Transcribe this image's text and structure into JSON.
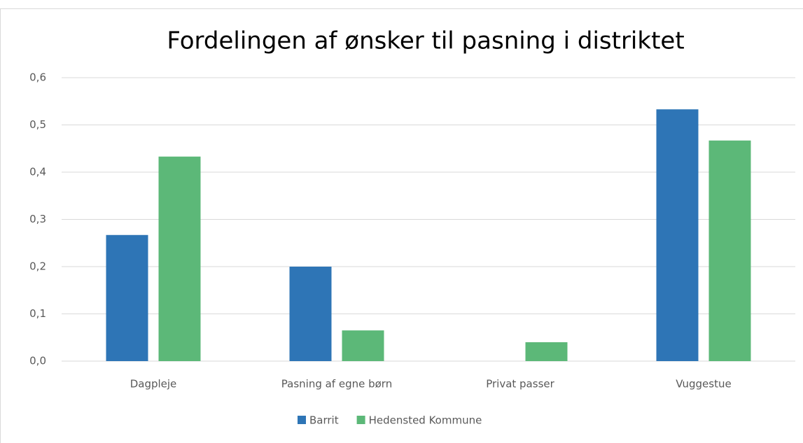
{
  "chart_data": {
    "type": "bar",
    "title": "Fordelingen af ønsker til pasning i distriktet",
    "categories": [
      "Dagpleje",
      "Pasning af egne børn",
      "Privat passer",
      "Vuggestue"
    ],
    "series": [
      {
        "name": "Barrit",
        "color": "#2e75b6",
        "values": [
          0.267,
          0.2,
          0,
          0.533
        ]
      },
      {
        "name": "Hedensted Kommune",
        "color": "#5cb878",
        "values": [
          0.433,
          0.065,
          0.04,
          0.467
        ]
      }
    ],
    "ylim": [
      0,
      0.6
    ],
    "yticks": [
      {
        "value": 0,
        "label": "0,0"
      },
      {
        "value": 0.1,
        "label": "0,1"
      },
      {
        "value": 0.2,
        "label": "0,2"
      },
      {
        "value": 0.3,
        "label": "0,3"
      },
      {
        "value": 0.4,
        "label": "0,4"
      },
      {
        "value": 0.5,
        "label": "0,5"
      },
      {
        "value": 0.6,
        "label": "0,6"
      }
    ],
    "grid": true,
    "legend": "bottom"
  }
}
